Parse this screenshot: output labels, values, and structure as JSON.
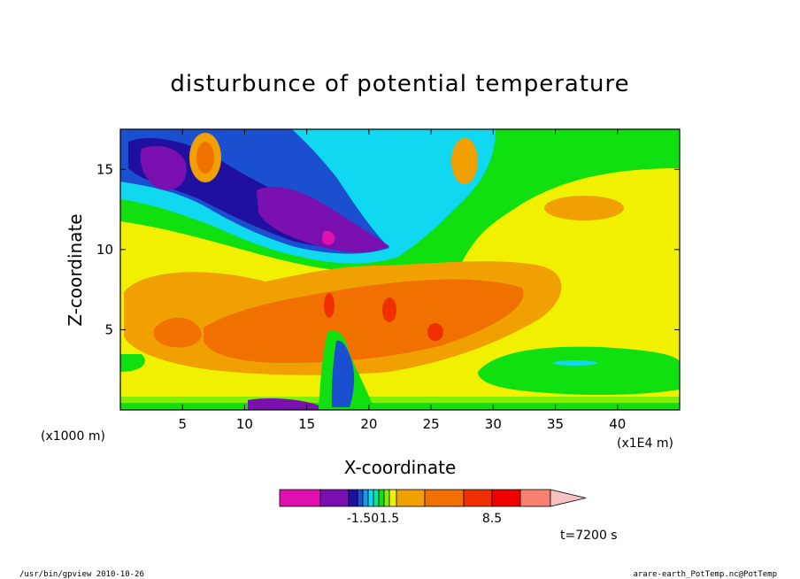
{
  "chart_data": {
    "type": "heatmap",
    "title": "disturbunce of potential temperature",
    "xlabel": "X-coordinate",
    "ylabel": "Z-coordinate",
    "x_unit": "(x1000 m)",
    "x_scale_note": "(x1E4 m)",
    "xlim": [
      0,
      45
    ],
    "ylim": [
      0,
      17.5
    ],
    "x_ticks": [
      5,
      10,
      15,
      20,
      25,
      30,
      35,
      40
    ],
    "y_ticks": [
      5,
      10,
      15
    ],
    "time_label": "t=7200 s",
    "colorbar": {
      "colors": [
        "#e010b0",
        "#7a10b0",
        "#2010a0",
        "#1a4fd0",
        "#1898e8",
        "#10d8f0",
        "#10e0a0",
        "#10e010",
        "#80f000",
        "#f0f000",
        "#f0a000",
        "#f07000",
        "#f03000",
        "#f00000",
        "#f88070",
        "#f8c0c0"
      ],
      "labels": [
        {
          "value": "-1.50",
          "index": 4
        },
        {
          "value": "1.5",
          "index": 9
        },
        {
          "value": "8.5",
          "index": 13
        }
      ]
    },
    "regions": [
      {
        "name": "upper-left-negative",
        "x": 8,
        "z": 14.5,
        "level": -3,
        "color": "#7a10b0"
      },
      {
        "name": "upper-center-negative",
        "x": 14.5,
        "z": 11.5,
        "level": -4,
        "color": "#7a10b0"
      },
      {
        "name": "upper-minimum",
        "x": 16.5,
        "z": 10.5,
        "level": -5,
        "color": "#e010b0"
      },
      {
        "name": "upper-right-warm",
        "x": 38,
        "z": 12.5,
        "level": 6,
        "color": "#f0a000"
      },
      {
        "name": "mid-warm-core",
        "x": 17,
        "z": 5.5,
        "level": 6,
        "color": "#f0a000"
      },
      {
        "name": "mid-warm-peak",
        "x": 21,
        "z": 6,
        "level": 8,
        "color": "#f07000"
      },
      {
        "name": "lower-right-cool",
        "x": 37,
        "z": 3,
        "level": 0,
        "color": "#10e010"
      },
      {
        "name": "background",
        "x": 30,
        "z": 8,
        "level": 3,
        "color": "#f0f000"
      }
    ]
  },
  "footer": {
    "left": "/usr/bin/gpview  2010-10-26",
    "right": "arare-earth_PotTemp.nc@PotTemp"
  }
}
